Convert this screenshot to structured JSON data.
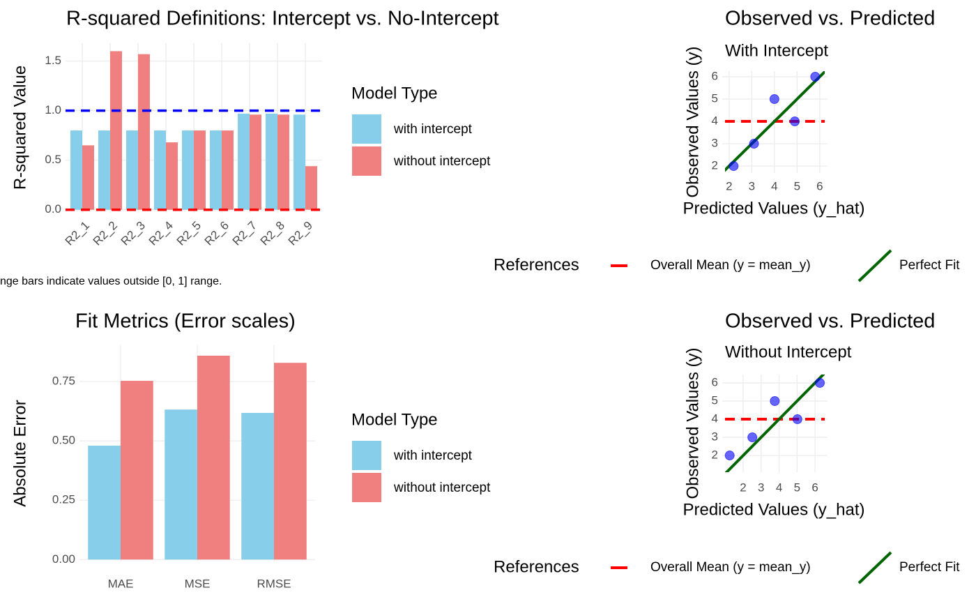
{
  "chart_data": [
    {
      "type": "bar",
      "title": "R-squared Definitions: Intercept vs. No-Intercept",
      "y_label": "R-squared Value",
      "caption": "nge bars indicate values outside [0, 1] range.",
      "categories": [
        "R2_1",
        "R2_2",
        "R2_3",
        "R2_4",
        "R2_5",
        "R2_6",
        "R2_7",
        "R2_8",
        "R2_9"
      ],
      "legend_title": "Model Type",
      "legend": "right",
      "series": [
        {
          "name": "with intercept",
          "color": "#87CEEB",
          "values": [
            0.8,
            0.8,
            0.8,
            0.8,
            0.8,
            0.8,
            0.97,
            0.97,
            0.96
          ]
        },
        {
          "name": "without intercept",
          "color": "#F08080",
          "values": [
            0.65,
            1.6,
            1.57,
            0.68,
            0.8,
            0.8,
            0.96,
            0.96,
            0.44
          ]
        }
      ],
      "reference_lines": [
        {
          "value": 1,
          "color": "#0000FF"
        },
        {
          "value": 0,
          "color": "#FF0000"
        }
      ],
      "ylim": [
        -0.03,
        1.68
      ],
      "yticks": [
        {
          "value": 0,
          "label": "0.0"
        },
        {
          "value": 0.5,
          "label": "0.5"
        },
        {
          "value": 1,
          "label": "1.0"
        },
        {
          "value": 1.5,
          "label": "1.5"
        }
      ],
      "grid": true
    },
    {
      "type": "scatter",
      "title": "Observed vs. Predicted",
      "subtitle": "With Intercept",
      "x_label": "Predicted Values (y_hat)",
      "y_label": "Observed Values (y)",
      "x": [
        2.2,
        3.1,
        4.0,
        4.9,
        5.8
      ],
      "values": [
        2,
        3,
        5,
        4,
        6
      ],
      "color": "#0000FF",
      "legend_title": "References",
      "legend": "bottom",
      "reference_lines": [
        {
          "name": "Overall Mean (y = mean_y)",
          "kind": "hline",
          "value": 4,
          "color": "#FF0000"
        },
        {
          "name": "Perfect Fit",
          "kind": "identity",
          "color": "#006400"
        }
      ],
      "xlim": [
        1.82,
        6.22
      ],
      "ylim": [
        1.69,
        6.25
      ],
      "xticks": [
        2,
        3,
        4,
        5,
        6
      ],
      "yticks": [
        2,
        3,
        4,
        5,
        6
      ],
      "grid": true
    },
    {
      "type": "bar",
      "title": "Fit Metrics (Error scales)",
      "y_label": "Absolute Error",
      "categories": [
        "MAE",
        "MSE",
        "RMSE"
      ],
      "legend_title": "Model Type",
      "legend": "right",
      "series": [
        {
          "name": "with intercept",
          "color": "#87CEEB",
          "values": [
            0.48,
            0.632,
            0.618
          ]
        },
        {
          "name": "without intercept",
          "color": "#F08080",
          "values": [
            0.753,
            0.859,
            0.829
          ]
        }
      ],
      "ylim": [
        -0.008,
        0.903
      ],
      "yticks": [
        {
          "value": 0,
          "label": "0.00"
        },
        {
          "value": 0.25,
          "label": "0.25"
        },
        {
          "value": 0.5,
          "label": "0.50"
        },
        {
          "value": 0.75,
          "label": "0.75"
        }
      ],
      "grid": true
    },
    {
      "type": "scatter",
      "title": "Observed vs. Predicted",
      "subtitle": "Without Intercept",
      "x_label": "Predicted Values (y_hat)",
      "y_label": "Observed Values (y)",
      "x": [
        1.25,
        2.51,
        3.76,
        5.02,
        6.27
      ],
      "values": [
        2,
        3,
        5,
        4,
        6
      ],
      "color": "#0000FF",
      "legend_title": "References",
      "legend": "bottom",
      "reference_lines": [
        {
          "name": "Overall Mean (y = mean_y)",
          "kind": "hline",
          "value": 4,
          "color": "#FF0000"
        },
        {
          "name": "Perfect Fit",
          "kind": "identity",
          "color": "#006400"
        }
      ],
      "xlim": [
        0.99,
        6.54
      ],
      "ylim": [
        1.08,
        6.46
      ],
      "xticks": [
        2,
        3,
        4,
        5,
        6
      ],
      "yticks": [
        2,
        3,
        4,
        5,
        6
      ],
      "grid": true
    }
  ]
}
